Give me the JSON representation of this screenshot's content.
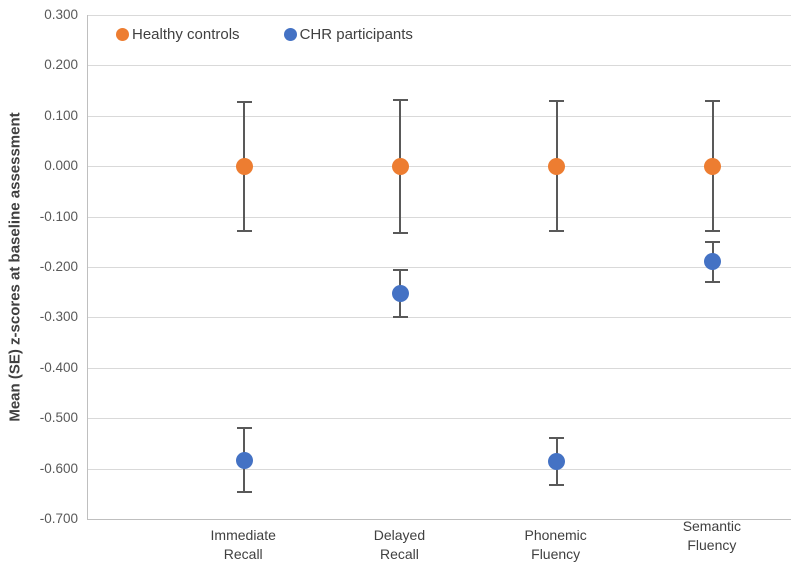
{
  "chart_data": {
    "type": "scatter",
    "title": "",
    "xlabel": "",
    "ylabel": "Mean (SE) z-scores at baseline assessment",
    "ylim": [
      -0.7,
      0.3
    ],
    "grid": true,
    "legend_position": "top-left-inside",
    "ytick_values": [
      0.3,
      0.2,
      0.1,
      0.0,
      -0.1,
      -0.2,
      -0.3,
      -0.4,
      -0.5,
      -0.6,
      -0.7
    ],
    "ytick_labels": [
      "0.300",
      "0.200",
      "0.100",
      "0.000",
      "-0.100",
      "-0.200",
      "-0.300",
      "-0.400",
      "-0.500",
      "-0.600",
      "-0.700"
    ],
    "categories": [
      "Immediate Recall",
      "Delayed Recall",
      "Phonemic Fluency",
      "Semantic Fluency"
    ],
    "series": [
      {
        "name": "Healthy controls",
        "color": "#ED7D31",
        "values": [
          0.0,
          0.0,
          0.0,
          0.0
        ],
        "errors": [
          0.13,
          0.134,
          0.131,
          0.131
        ]
      },
      {
        "name": "CHR participants",
        "color": "#4472C4",
        "values": [
          -0.583,
          -0.252,
          -0.586,
          -0.19
        ],
        "errors": [
          0.066,
          0.049,
          0.048,
          0.042
        ]
      }
    ],
    "error_bar_color": "#595959"
  },
  "colors": {
    "gridline": "#D9D9D9",
    "axis_line": "#BFBFBF",
    "tick_text": "#595959",
    "label_text": "#404040"
  }
}
